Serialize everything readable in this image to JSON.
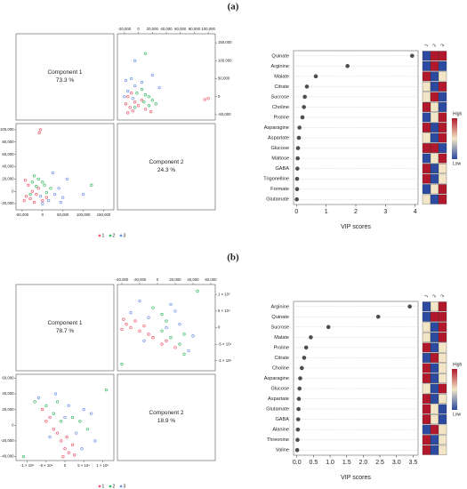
{
  "panel_labels": [
    "(a)",
    "(b)"
  ],
  "chart_data": [
    {
      "type": "scatter-matrix",
      "components": [
        "Component 1",
        "Component 2"
      ],
      "variance": [
        73.3,
        24.3
      ],
      "variance_labels": [
        "73.3 %",
        "24.3 %"
      ],
      "xlim": [
        -65000,
        175000
      ],
      "xticks": [
        {
          "value": -50000,
          "label": "-50,000"
        },
        0,
        {
          "value": 50000,
          "label": "50,000"
        },
        {
          "value": 100000,
          "label": "100,000"
        },
        {
          "value": 150000,
          "label": "150,000"
        }
      ],
      "ylim": [
        -30000,
        110000
      ],
      "yticks": [
        {
          "value": -20000,
          "label": "-20,000"
        },
        0,
        {
          "value": 20000,
          "label": "20,000"
        },
        {
          "value": 40000,
          "label": "40,000"
        },
        {
          "value": 60000,
          "label": "60,000"
        },
        {
          "value": 80000,
          "label": "80,000"
        },
        {
          "value": 100000,
          "label": "100,000"
        }
      ],
      "series": [
        {
          "name": "1",
          "color": "#ef5b6e",
          "x": [
            -45000,
            -40000,
            -30000,
            -20000,
            -10000,
            -35000,
            -25000,
            -15000,
            0,
            10000,
            -42000,
            -5000,
            -8000
          ],
          "y": [
            -15000,
            -8000,
            -12000,
            -18000,
            5000,
            10000,
            0,
            -5000,
            -15000,
            -10000,
            18000,
            100000,
            95000
          ]
        },
        {
          "name": "2",
          "color": "#3dbb6a",
          "x": [
            -20000,
            -10000,
            0,
            -30000,
            5000,
            20000,
            -25000,
            10000,
            -15000,
            120000
          ],
          "y": [
            25000,
            20000,
            15000,
            -5000,
            10000,
            5000,
            15000,
            -2000,
            8000,
            10000
          ]
        },
        {
          "name": "3",
          "color": "#6f95e8",
          "x": [
            -5000,
            15000,
            30000,
            40000,
            50000,
            60000,
            25000,
            45000,
            0,
            100000
          ],
          "y": [
            -8000,
            -15000,
            -5000,
            5000,
            -10000,
            20000,
            30000,
            -18000,
            -20000,
            -5000
          ]
        }
      ]
    },
    {
      "type": "vip",
      "categories": [
        "Quinate",
        "Arginine",
        "Malate",
        "Citrate",
        "Sucrose",
        "Choline",
        "Proline",
        "Asparagine",
        "Aspartate",
        "Glucose",
        "Maltose",
        "GABA",
        "Trigonelline",
        "Formate",
        "Glutamate"
      ],
      "values": [
        3.9,
        1.72,
        0.65,
        0.35,
        0.28,
        0.25,
        0.2,
        0.1,
        0.08,
        0.05,
        0.04,
        0.03,
        0.02,
        0.02,
        0.01
      ],
      "color": "#4d4d4d",
      "xlim": [
        -0.1,
        4.1
      ],
      "xticks": [
        0,
        1,
        2,
        3,
        4
      ],
      "xlabel": "VIP scores",
      "heatmap_columns": [
        "1",
        "2",
        "3"
      ],
      "heatmap": [
        [
          -1,
          1,
          1
        ],
        [
          -1,
          1,
          -1
        ],
        [
          1,
          -1,
          0
        ],
        [
          0,
          -1,
          1
        ],
        [
          0,
          1,
          -1
        ],
        [
          1,
          0,
          -1
        ],
        [
          -1,
          0,
          1
        ],
        [
          1,
          -1,
          1
        ],
        [
          0,
          -1,
          1
        ],
        [
          1,
          1,
          -1
        ],
        [
          -1,
          0,
          1
        ],
        [
          1,
          -1,
          0
        ],
        [
          1,
          -1,
          0
        ],
        [
          -1,
          0,
          1
        ],
        [
          0,
          -1,
          1
        ]
      ],
      "colorscale": [
        "#2c4ba0",
        "#f2e6c6",
        "#b2182b"
      ],
      "colorbar_labels": [
        "High",
        "Low"
      ]
    },
    {
      "type": "scatter-matrix",
      "components": [
        "Component 1",
        "Component 2"
      ],
      "variance": [
        78.7,
        18.9
      ],
      "variance_labels": [
        "78.7 %",
        "18.9 %"
      ],
      "xlim": [
        -130000,
        130000
      ],
      "xticks": [
        {
          "value": -100000,
          "label": "-1 × 10⁵"
        },
        {
          "value": -50000,
          "label": "-5 × 10⁴"
        },
        0,
        {
          "value": 50000,
          "label": "5 × 10⁴"
        },
        {
          "value": 100000,
          "label": "1 × 10⁵"
        }
      ],
      "ylim": [
        -45000,
        65000
      ],
      "yticks": [
        {
          "value": -40000,
          "label": "-40,000"
        },
        {
          "value": -20000,
          "label": "-20,000"
        },
        0,
        {
          "value": 20000,
          "label": "20,000"
        },
        {
          "value": 40000,
          "label": "40,000"
        },
        {
          "value": 60000,
          "label": "60,000"
        }
      ],
      "series": [
        {
          "name": "1",
          "color": "#ef5b6e",
          "x": [
            -60000,
            -40000,
            -20000,
            -10000,
            0,
            10000,
            20000,
            -30000,
            5000,
            -50000,
            25000,
            -5000
          ],
          "y": [
            20000,
            10000,
            -10000,
            -20000,
            -30000,
            -35000,
            -25000,
            -5000,
            -15000,
            5000,
            -38000,
            -40000
          ]
        },
        {
          "name": "2",
          "color": "#3dbb6a",
          "x": [
            -80000,
            -50000,
            -30000,
            -10000,
            20000,
            40000,
            -20000,
            60000,
            110000,
            -110000
          ],
          "y": [
            30000,
            25000,
            15000,
            5000,
            10000,
            5000,
            30000,
            -5000,
            45000,
            -40000
          ]
        },
        {
          "name": "3",
          "color": "#6f95e8",
          "x": [
            -70000,
            -40000,
            0,
            30000,
            50000,
            70000,
            10000,
            -25000,
            80000,
            45000
          ],
          "y": [
            35000,
            -15000,
            10000,
            -10000,
            20000,
            15000,
            25000,
            40000,
            -20000,
            -30000
          ]
        }
      ]
    },
    {
      "type": "vip",
      "categories": [
        "Arginine",
        "Quinate",
        "Sucrose",
        "Malate",
        "Proline",
        "Citrate",
        "Choline",
        "Asparagine",
        "Glucose",
        "Aspartate",
        "Glutamate",
        "GABA",
        "Alanine",
        "Threonine",
        "Valine"
      ],
      "values": [
        3.4,
        2.45,
        0.95,
        0.42,
        0.28,
        0.22,
        0.15,
        0.1,
        0.08,
        0.06,
        0.05,
        0.04,
        0.03,
        0.02,
        0.01
      ],
      "color": "#4d4d4d",
      "xlim": [
        -0.1,
        3.65
      ],
      "xticks": [
        {
          "value": 0,
          "label": "0.0"
        },
        0.5,
        {
          "value": 1,
          "label": "1.0"
        },
        1.5,
        {
          "value": 2,
          "label": "2.0"
        },
        2.5,
        {
          "value": 3,
          "label": "3.0"
        },
        3.5
      ],
      "xlabel": "VIP scores",
      "heatmap_columns": [
        "1",
        "2",
        "3"
      ],
      "heatmap": [
        [
          -1,
          0,
          1
        ],
        [
          -1,
          1,
          1
        ],
        [
          0,
          -1,
          1
        ],
        [
          0,
          -1,
          1
        ],
        [
          1,
          -1,
          0
        ],
        [
          -1,
          1,
          0
        ],
        [
          1,
          -1,
          0
        ],
        [
          1,
          -1,
          0
        ],
        [
          0,
          -1,
          1
        ],
        [
          1,
          -1,
          0
        ],
        [
          1,
          0,
          -1
        ],
        [
          1,
          0,
          -1
        ],
        [
          -1,
          1,
          0
        ],
        [
          1,
          -1,
          0
        ],
        [
          1,
          -1,
          0
        ]
      ],
      "colorscale": [
        "#2c4ba0",
        "#f2e6c6",
        "#b2182b"
      ],
      "colorbar_labels": [
        "High",
        "Low"
      ]
    }
  ]
}
